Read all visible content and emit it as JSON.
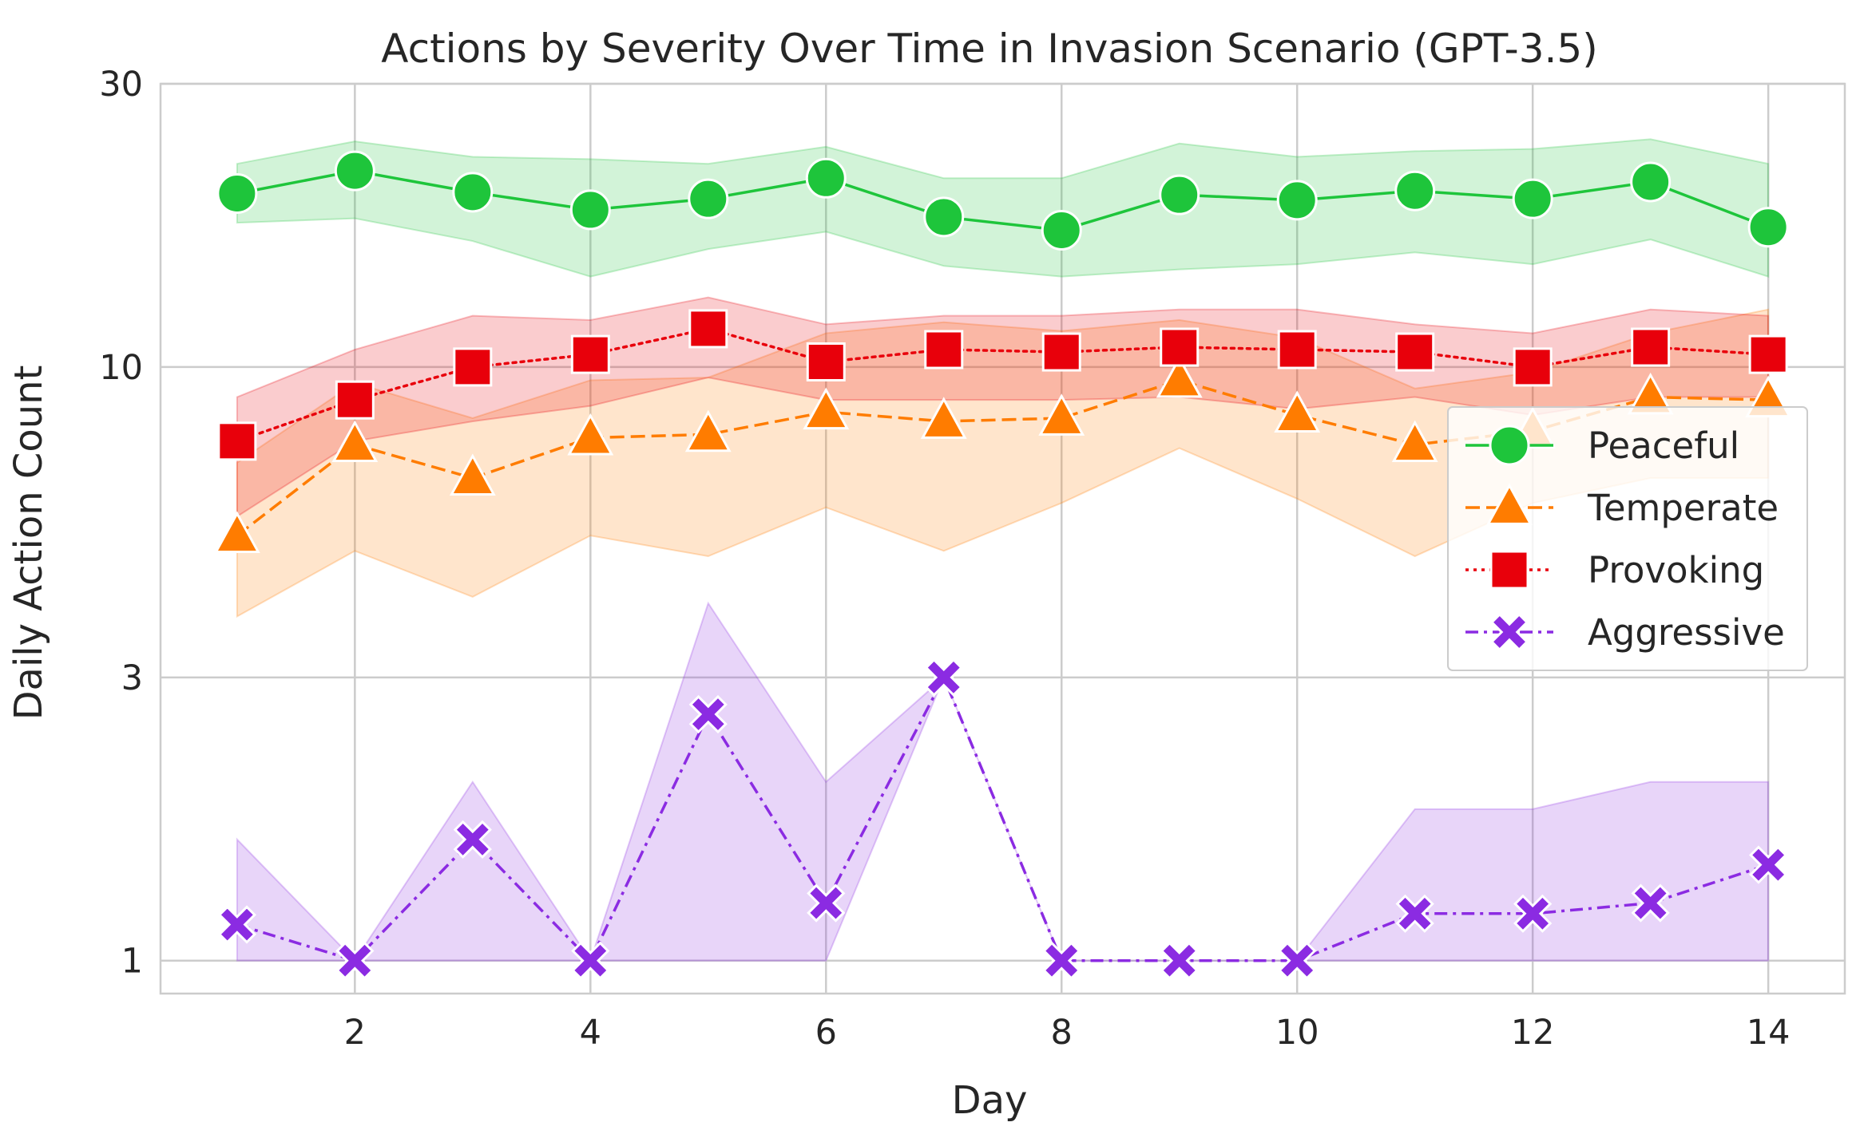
{
  "chart_data": {
    "type": "line",
    "title": "Actions by Severity Over Time in Invasion Scenario (GPT-3.5)",
    "xlabel": "Day",
    "ylabel": "Daily Action Count",
    "yscale": "log",
    "x": [
      1,
      2,
      3,
      4,
      5,
      6,
      7,
      8,
      9,
      10,
      11,
      12,
      13,
      14
    ],
    "x_ticks": [
      2,
      4,
      6,
      8,
      10,
      12,
      14
    ],
    "x_tick_labels": [
      "2",
      "4",
      "6",
      "8",
      "10",
      "12",
      "14"
    ],
    "xlim": [
      0.35,
      14.65
    ],
    "y_ticks": [
      1,
      3,
      10,
      30
    ],
    "y_tick_labels": [
      "1",
      "3",
      "10",
      "30"
    ],
    "ylim": [
      0.88,
      30
    ],
    "grid": true,
    "legend_position": "center-right",
    "series": [
      {
        "name": "Peaceful",
        "color": "#1ec53b",
        "linestyle": "solid",
        "marker": "circle",
        "values": [
          19.6,
          21.4,
          19.7,
          18.4,
          19.2,
          20.8,
          17.9,
          17.0,
          19.5,
          19.1,
          19.8,
          19.2,
          20.5,
          17.2
        ],
        "ci_low": [
          17.5,
          17.8,
          16.3,
          14.2,
          15.8,
          16.9,
          14.8,
          14.2,
          14.6,
          14.9,
          15.6,
          14.9,
          16.4,
          14.2
        ],
        "ci_high": [
          22.0,
          24.0,
          22.6,
          22.4,
          22.0,
          23.5,
          20.8,
          20.8,
          23.8,
          22.6,
          23.1,
          23.3,
          24.2,
          22.0
        ]
      },
      {
        "name": "Temperate",
        "color": "#ff7c00",
        "linestyle": "dashed",
        "marker": "triangle",
        "values": [
          5.2,
          7.4,
          6.5,
          7.6,
          7.7,
          8.4,
          8.1,
          8.2,
          9.5,
          8.3,
          7.4,
          7.8,
          8.9,
          8.8
        ],
        "ci_low": [
          3.8,
          4.9,
          4.1,
          5.2,
          4.8,
          5.8,
          4.9,
          5.9,
          7.3,
          6.0,
          4.8,
          5.9,
          6.5,
          6.5
        ],
        "ci_high": [
          6.9,
          9.4,
          8.2,
          9.5,
          9.6,
          11.4,
          11.9,
          11.5,
          12.0,
          11.2,
          9.2,
          9.8,
          11.4,
          12.5
        ]
      },
      {
        "name": "Provoking",
        "color": "#e8000b",
        "linestyle": "dotted",
        "marker": "square",
        "values": [
          7.5,
          8.8,
          10.0,
          10.5,
          11.6,
          10.2,
          10.7,
          10.6,
          10.8,
          10.7,
          10.6,
          10.0,
          10.8,
          10.5
        ],
        "ci_low": [
          5.6,
          7.5,
          8.1,
          8.6,
          9.6,
          8.8,
          8.8,
          8.8,
          8.9,
          8.5,
          8.9,
          8.3,
          8.9,
          8.9
        ],
        "ci_high": [
          8.9,
          10.7,
          12.2,
          12.0,
          13.1,
          11.8,
          12.2,
          12.2,
          12.5,
          12.5,
          11.8,
          11.4,
          12.5,
          12.2
        ]
      },
      {
        "name": "Aggressive",
        "color": "#8b2be2",
        "linestyle": "dashdot",
        "marker": "x",
        "values": [
          1.15,
          1.0,
          1.6,
          1.0,
          2.6,
          1.25,
          3.0,
          1.0,
          1.0,
          1.0,
          1.2,
          1.2,
          1.25,
          1.45
        ],
        "ci_low": [
          1.0,
          1.0,
          1.0,
          1.0,
          1.0,
          1.0,
          3.0,
          1.0,
          1.0,
          1.0,
          1.0,
          1.0,
          1.0,
          1.0
        ],
        "ci_high": [
          1.6,
          1.0,
          2.0,
          1.0,
          4.0,
          2.0,
          3.0,
          1.0,
          1.0,
          1.0,
          1.8,
          1.8,
          2.0,
          2.0
        ]
      }
    ]
  }
}
